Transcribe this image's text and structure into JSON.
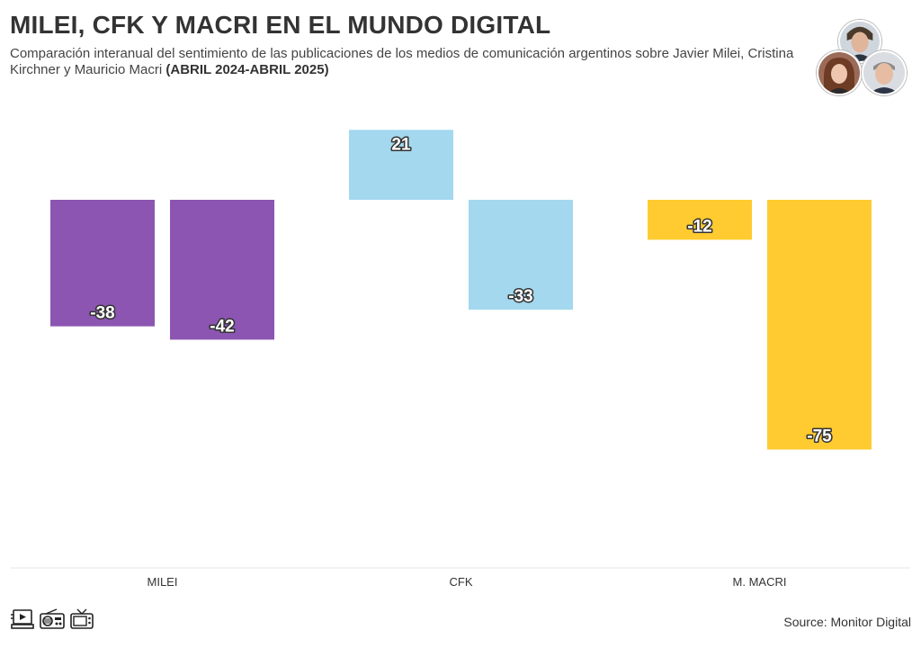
{
  "header": {
    "title": "MILEI, CFK Y MACRI EN EL MUNDO DIGITAL",
    "subtitle": "Comparación interanual del sentimiento de las publicaciones de los medios de comunicación argentinos sobre Javier Milei, Cristina Kirchner y Mauricio Macri",
    "subtitle_bold": "(ABRIL 2024-ABRIL 2025)"
  },
  "footer": {
    "source": "Source: Monitor Digital",
    "icons": [
      "computer-video-icon",
      "radio-icon",
      "television-icon"
    ]
  },
  "avatars": [
    "javier-milei-avatar",
    "cristina-kirchner-avatar",
    "mauricio-macri-avatar"
  ],
  "chart_data": {
    "type": "bar",
    "categories": [
      "MILEI",
      "CFK",
      "M. MACRI"
    ],
    "series": [
      {
        "values": [
          -38,
          21,
          -12
        ]
      },
      {
        "values": [
          -42,
          -33,
          -75
        ]
      }
    ],
    "colors": [
      "#8c55b1",
      "#a3d8ee",
      "#ffcb30"
    ],
    "ylim": [
      -100,
      25
    ],
    "grid": false,
    "legend": "none"
  }
}
